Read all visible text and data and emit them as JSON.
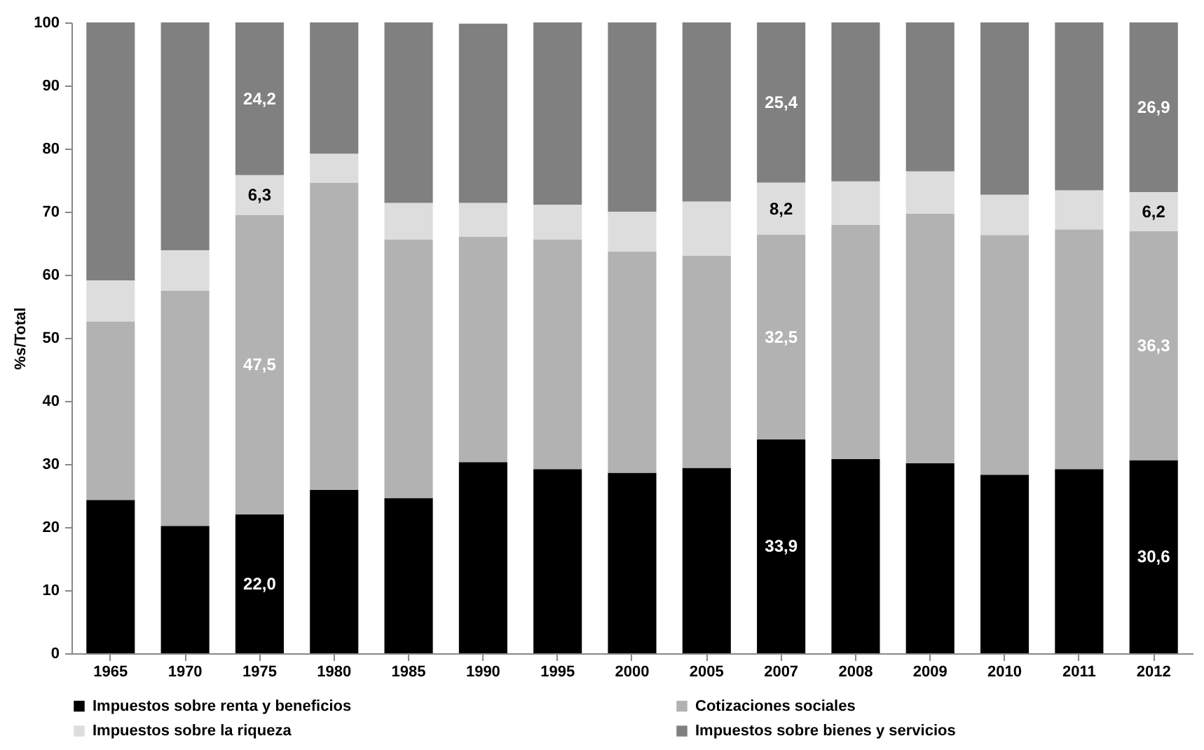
{
  "chart_data": {
    "type": "bar",
    "stacked": true,
    "ylabel": "%s/Total",
    "categories": [
      "1965",
      "1970",
      "1975",
      "1980",
      "1985",
      "1990",
      "1995",
      "2000",
      "2005",
      "2007",
      "2008",
      "2009",
      "2010",
      "2011",
      "2012"
    ],
    "ylim": [
      0,
      100
    ],
    "yticks": [
      0,
      10,
      20,
      30,
      40,
      50,
      60,
      70,
      80,
      90,
      100
    ],
    "grid": false,
    "legend": "bottom",
    "series": [
      {
        "name": "Impuestos sobre renta y beneficios",
        "color": "#000000",
        "values": [
          24.3,
          20.2,
          22.0,
          25.9,
          24.6,
          30.3,
          29.2,
          28.6,
          29.4,
          33.9,
          30.8,
          30.1,
          28.3,
          29.2,
          30.6
        ],
        "value_labels": [
          null,
          null,
          "22,0",
          null,
          null,
          null,
          null,
          null,
          null,
          "33,9",
          null,
          null,
          null,
          null,
          "30,6"
        ]
      },
      {
        "name": "Cotizaciones sociales",
        "color": "#b2b2b2",
        "values": [
          28.3,
          37.3,
          47.5,
          48.7,
          41.0,
          35.7,
          36.4,
          35.1,
          33.6,
          32.5,
          37.1,
          39.6,
          38.0,
          38.0,
          36.3
        ],
        "value_labels": [
          null,
          null,
          "47,5",
          null,
          null,
          null,
          null,
          null,
          null,
          "32,5",
          null,
          null,
          null,
          null,
          "36,3"
        ]
      },
      {
        "name": "Impuestos sobre la riqueza",
        "color": "#dddddd",
        "values": [
          6.5,
          6.4,
          6.3,
          4.6,
          5.8,
          5.4,
          5.5,
          6.3,
          8.6,
          8.2,
          6.9,
          6.7,
          6.4,
          6.2,
          6.2
        ],
        "value_labels": [
          null,
          null,
          "6,3",
          null,
          null,
          null,
          null,
          null,
          null,
          "8,2",
          null,
          null,
          null,
          null,
          "6,2"
        ]
      },
      {
        "name": "Impuestos sobre bienes y servicios",
        "color": "#808080",
        "values": [
          40.9,
          36.1,
          24.2,
          20.8,
          28.6,
          28.4,
          28.9,
          30.0,
          28.4,
          25.4,
          25.2,
          23.6,
          27.3,
          26.6,
          26.9
        ],
        "value_labels": [
          null,
          null,
          "24,2",
          null,
          null,
          null,
          null,
          null,
          null,
          "25,4",
          null,
          null,
          null,
          null,
          "26,9"
        ]
      }
    ]
  }
}
